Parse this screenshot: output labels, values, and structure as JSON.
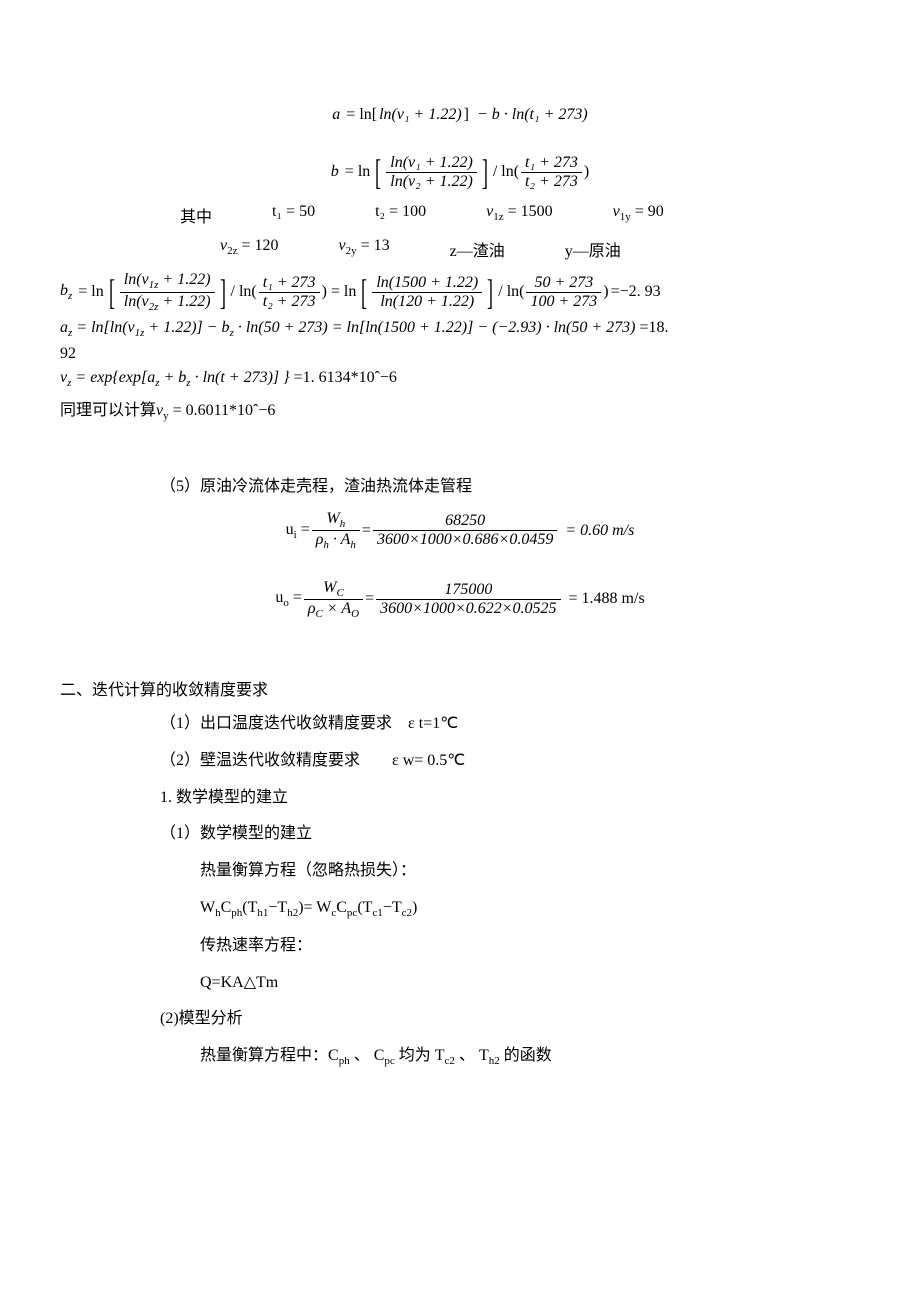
{
  "eq_a": {
    "lhs": "a",
    "inner": "ln(ν₁ + 1.22)",
    "tail": "− b · ln(t₁ + 273)"
  },
  "eq_b": {
    "lhs": "b",
    "num": "ln(ν₁ + 1.22)",
    "den": "ln(ν₂ + 1.22)",
    "tail_num": "t₁ + 273",
    "tail_den": "t₂ + 273"
  },
  "where_label": "其中",
  "vars_row1": {
    "t1": "t₁ = 50",
    "t2": "t₂ = 100",
    "v1z": "ν₁ᵤ = 1500",
    "v1z_label": "ν",
    "v1z_sub": "1z",
    "v1z_val": "= 1500",
    "v1y_label": "ν",
    "v1y_sub": "1y",
    "v1y_val": "= 90"
  },
  "vars_row2": {
    "v2z_label": "ν",
    "v2z_sub": "2z",
    "v2z_val": "= 120",
    "v2y_label": "ν",
    "v2y_sub": "2y",
    "v2y_val": "= 13",
    "z_label": "z—渣油",
    "y_label": "y—原油"
  },
  "eq_bz": {
    "lhs_var": "b",
    "lhs_sub": "z",
    "num1_a": "ln(ν",
    "num1_sub": "1z",
    "num1_b": " + 1.22)",
    "den1_a": "ln(ν",
    "den1_sub": "2z",
    "den1_b": " + 1.22)",
    "mid_num": "t₁ + 273",
    "mid_den": "t₂ + 273",
    "num2": "ln(1500 + 1.22)",
    "den2": "ln(120 + 1.22)",
    "tail_num": "50 + 273",
    "tail_den": "100 + 273",
    "result": "=−2. 93"
  },
  "eq_az": {
    "lhs_var": "a",
    "lhs_sub": "z",
    "part1_a": "= ln[ln(ν",
    "part1_sub": "1z",
    "part1_b": " + 1.22)] − b",
    "part1_sub2": "z",
    "part1_c": " · ln(50 + 273) = ln[ln(1500 + 1.22)] − (−2.93) · ln(50 + 273)",
    "result": "=18.",
    "result2": "92"
  },
  "eq_vz": {
    "lhs_var": "ν",
    "lhs_sub": "z",
    "body_a": "= exp{exp[a",
    "body_sub1": "z",
    "body_b": " + b",
    "body_sub2": "z",
    "body_c": " · ln(t + 273)] }",
    "result": "=1. 6134*10ˆ−6"
  },
  "eq_vy": {
    "prefix": "同理可以计算",
    "var": "ν",
    "sub": "y",
    "val": " = 0.6011*10ˆ−6"
  },
  "section5": {
    "label": "（5）原油冷流体走壳程，渣油热流体走管程"
  },
  "eq_ui": {
    "lhs": "uᵢ",
    "num1_a": "W",
    "num1_sub": "h",
    "den1_a": "ρ",
    "den1_sub": "h",
    "den1_b": " · A",
    "den1_sub2": "h",
    "num2": "68250",
    "den2": "3600×1000×0.686×0.0459",
    "result": "= 0.60 m/s"
  },
  "eq_uo": {
    "lhs": "uₒ",
    "num1_a": "W",
    "num1_sub": "C",
    "den1_a": "ρ",
    "den1_sub": "C",
    "den1_b": " × A",
    "den1_sub2": "O",
    "num2": "175000",
    "den2": "3600×1000×0.622×0.0525",
    "result": "= 1.488 m/s"
  },
  "section2_title": "二、迭代计算的收敛精度要求",
  "item2_1": "（1）出口温度迭代收敛精度要求    ε t=1℃",
  "item2_2": "（2）壁温迭代收敛精度要求        ε w= 0.5℃",
  "item2_3": "1. 数学模型的建立",
  "item2_4": "（1）数学模型的建立",
  "item2_5": "热量衡算方程（忽略热损失）：",
  "item2_6_a": "W",
  "item2_6_b": "C",
  "item2_6_c": "(T",
  "item2_6_d": "−T",
  "item2_6_e": ")= W",
  "item2_6_f": "C",
  "item2_6_g": "(T",
  "item2_6_h": "−T",
  "item2_6_i": ")",
  "subs": {
    "h": "h",
    "ph": "ph",
    "h1": "h1",
    "h2": "h2",
    "c": "c",
    "pc": "pc",
    "c1": "c1",
    "c2": "c2"
  },
  "item2_7": "传热速率方程：",
  "item2_8": "Q=KA△Tm",
  "item2_9": "(2)模型分析",
  "item2_10_a": "热量衡算方程中：C",
  "item2_10_b": "  、 C",
  "item2_10_c": "   均为 T",
  "item2_10_d": " 、 T",
  "item2_10_e": " 的函数"
}
